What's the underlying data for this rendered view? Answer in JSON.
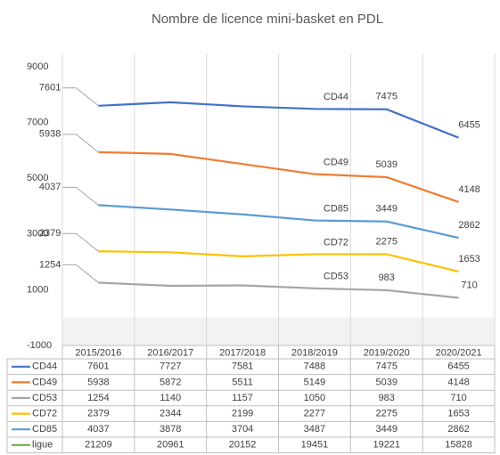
{
  "chart_data": {
    "type": "line",
    "title": "Nombre de licence mini-basket en PDL",
    "categories": [
      "2015/2016",
      "2016/2017",
      "2017/2018",
      "2018/2019",
      "2019/2020",
      "2020/2021"
    ],
    "series": [
      {
        "name": "CD44",
        "color": "#4472c4",
        "values": [
          7601,
          7727,
          7581,
          7488,
          7475,
          6455
        ]
      },
      {
        "name": "CD49",
        "color": "#ed7d31",
        "values": [
          5938,
          5872,
          5511,
          5149,
          5039,
          4148
        ]
      },
      {
        "name": "CD53",
        "color": "#a5a5a5",
        "values": [
          1254,
          1140,
          1157,
          1050,
          983,
          710
        ]
      },
      {
        "name": "CD72",
        "color": "#ffc000",
        "values": [
          2379,
          2344,
          2199,
          2277,
          2275,
          1653
        ]
      },
      {
        "name": "CD85",
        "color": "#5b9bd5",
        "values": [
          4037,
          3878,
          3704,
          3487,
          3449,
          2862
        ]
      },
      {
        "name": "ligue",
        "color": "#70ad47",
        "values": [
          21209,
          20961,
          20152,
          19451,
          19221,
          15828
        ]
      }
    ],
    "ylim": [
      -1000,
      9000
    ],
    "yticks": [
      -1000,
      1000,
      3000,
      5000,
      7000,
      9000
    ],
    "grid": true
  }
}
